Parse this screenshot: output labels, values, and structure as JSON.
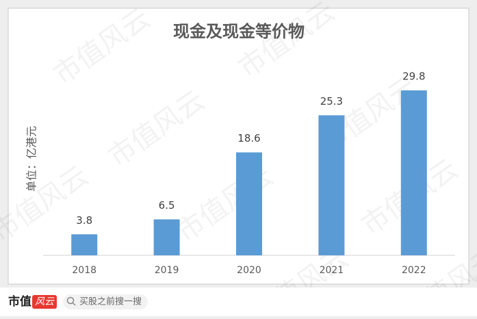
{
  "chart_data": {
    "type": "bar",
    "title": "现金及现金等价物",
    "y_label": "单位：亿港元",
    "categories": [
      "2018",
      "2019",
      "2020",
      "2021",
      "2022"
    ],
    "values": [
      3.8,
      6.5,
      18.6,
      25.3,
      29.8
    ],
    "color": "#5b9bd5",
    "ylim": [
      0,
      35
    ],
    "grid": false
  },
  "watermark": "市值风云",
  "footer": {
    "brand": "市值",
    "logo": "风云",
    "search": "买股之前搜一搜"
  }
}
